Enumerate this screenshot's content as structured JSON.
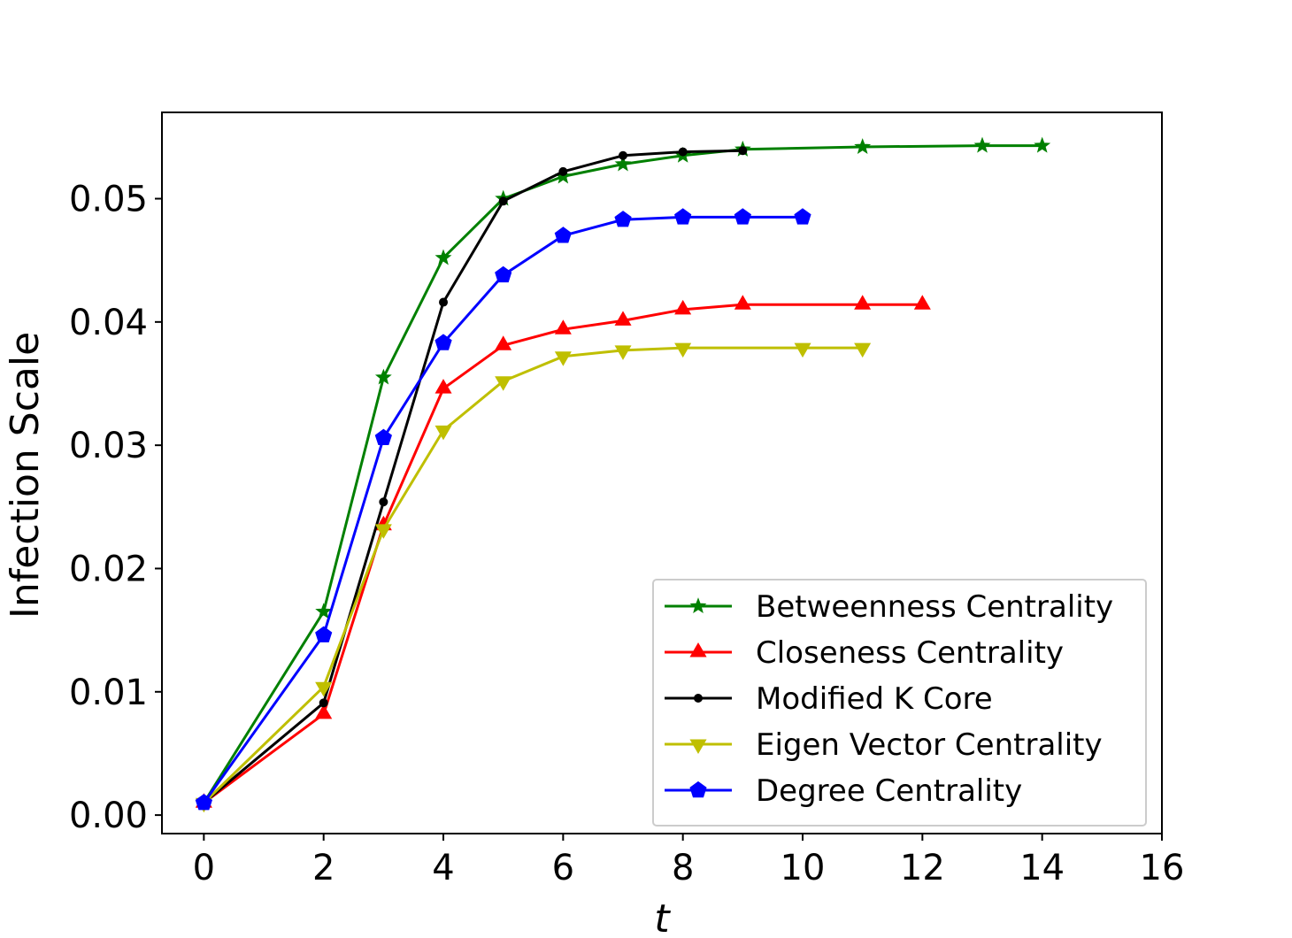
{
  "chart_data": {
    "type": "line",
    "xlabel": "t",
    "ylabel": "Infection Scale",
    "xlim": [
      -0.7,
      16
    ],
    "ylim": [
      -0.0015,
      0.057
    ],
    "xticks": [
      0,
      2,
      4,
      6,
      8,
      10,
      12,
      14,
      16
    ],
    "xtick_labels": [
      "0",
      "2",
      "4",
      "6",
      "8",
      "10",
      "12",
      "14",
      "16"
    ],
    "yticks": [
      0.0,
      0.01,
      0.02,
      0.03,
      0.04,
      0.05
    ],
    "ytick_labels": [
      "0.00",
      "0.01",
      "0.02",
      "0.03",
      "0.04",
      "0.05"
    ],
    "grid": false,
    "legend_position": "lower-right",
    "series": [
      {
        "name": "Betweenness Centrality",
        "color": "#008000",
        "marker": "star",
        "x": [
          0,
          2,
          3,
          4,
          5,
          6,
          7,
          8,
          9,
          11,
          13,
          14
        ],
        "y": [
          0.001,
          0.0165,
          0.0355,
          0.0452,
          0.05,
          0.0518,
          0.0528,
          0.0535,
          0.054,
          0.0542,
          0.0543,
          0.0543
        ]
      },
      {
        "name": "Closeness Centrality",
        "color": "#ff0000",
        "marker": "triangle-up",
        "x": [
          0,
          2,
          3,
          4,
          5,
          6,
          7,
          8,
          9,
          11,
          12
        ],
        "y": [
          0.001,
          0.0082,
          0.0235,
          0.0346,
          0.0381,
          0.0394,
          0.0401,
          0.041,
          0.0414,
          0.0414,
          0.0414
        ]
      },
      {
        "name": "Modified K Core",
        "color": "#000000",
        "marker": "circle",
        "x": [
          0,
          2,
          3,
          4,
          5,
          6,
          7,
          8,
          9
        ],
        "y": [
          0.001,
          0.0091,
          0.0254,
          0.0416,
          0.0498,
          0.0522,
          0.0535,
          0.0538,
          0.0539
        ]
      },
      {
        "name": "Eigen Vector Centrality",
        "color": "#bfbf00",
        "marker": "triangle-down",
        "x": [
          0,
          2,
          3,
          4,
          5,
          6,
          7,
          8,
          10,
          11
        ],
        "y": [
          0.001,
          0.0104,
          0.0232,
          0.0312,
          0.0352,
          0.0372,
          0.0377,
          0.0379,
          0.0379,
          0.0379
        ]
      },
      {
        "name": "Degree Centrality",
        "color": "#0000ff",
        "marker": "pentagon",
        "x": [
          0,
          2,
          3,
          4,
          5,
          6,
          7,
          8,
          9,
          10
        ],
        "y": [
          0.001,
          0.0146,
          0.0306,
          0.0383,
          0.0438,
          0.047,
          0.0483,
          0.0485,
          0.0485,
          0.0485
        ]
      }
    ]
  }
}
